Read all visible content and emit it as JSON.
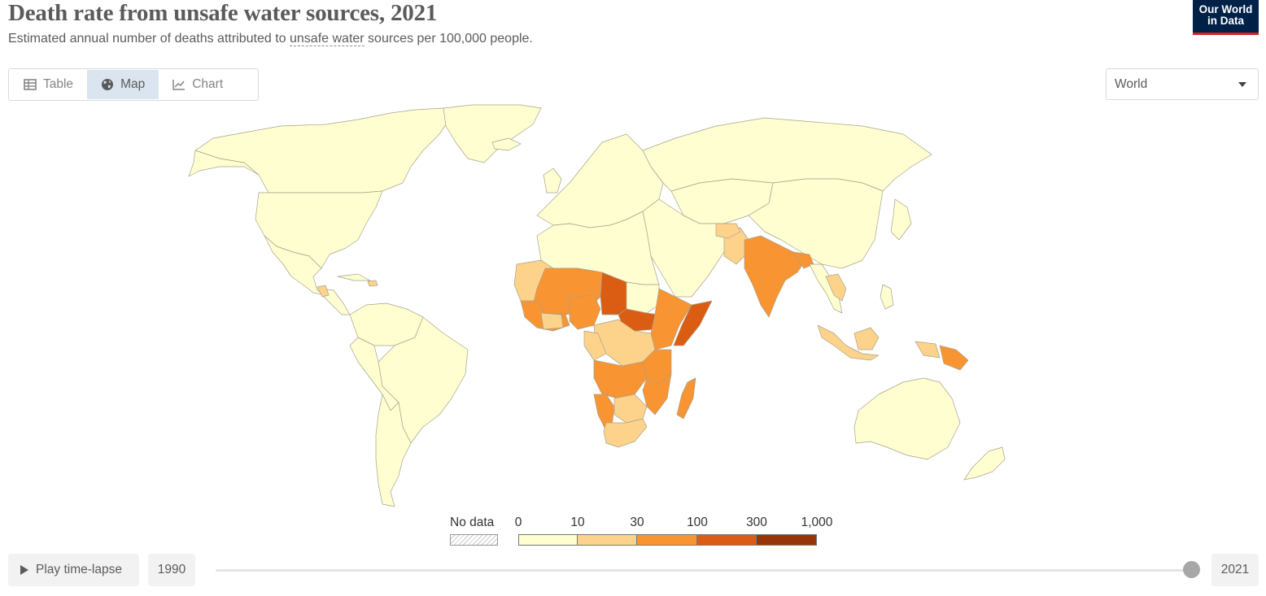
{
  "header": {
    "title": "Death rate from unsafe water sources, 2021",
    "subtitle_before": "Estimated annual number of deaths attributed to ",
    "subtitle_link": "unsafe water",
    "subtitle_after": " sources per 100,000 people."
  },
  "logo": {
    "line1": "Our World",
    "line2": "in Data"
  },
  "tabs": [
    {
      "label": "Table",
      "icon": "table-icon",
      "active": false
    },
    {
      "label": "Map",
      "icon": "globe-icon",
      "active": true
    },
    {
      "label": "Chart",
      "icon": "line-chart-icon",
      "active": false
    }
  ],
  "region_select": {
    "value": "World"
  },
  "legend": {
    "no_data_label": "No data",
    "ticks": [
      "0",
      "10",
      "30",
      "100",
      "300",
      "1,000"
    ],
    "bins": [
      {
        "from": "0",
        "to": "10",
        "color": "#fefed0"
      },
      {
        "from": "10",
        "to": "30",
        "color": "#fdd28b"
      },
      {
        "from": "30",
        "to": "100",
        "color": "#f99432"
      },
      {
        "from": "100",
        "to": "300",
        "color": "#db5d13"
      },
      {
        "from": "300",
        "to": "1,000",
        "color": "#983508"
      }
    ]
  },
  "map_colors": {
    "ocean": "#ffffff",
    "bin_0_10": "#fefed0",
    "bin_10_30": "#fdd28b",
    "bin_30_100": "#f99432",
    "bin_100_300": "#db5d13",
    "border": "#a7a28a"
  },
  "timeline": {
    "play_label": "Play time-lapse",
    "start_year": "1990",
    "end_year": "2021",
    "selected_year": "2021"
  }
}
